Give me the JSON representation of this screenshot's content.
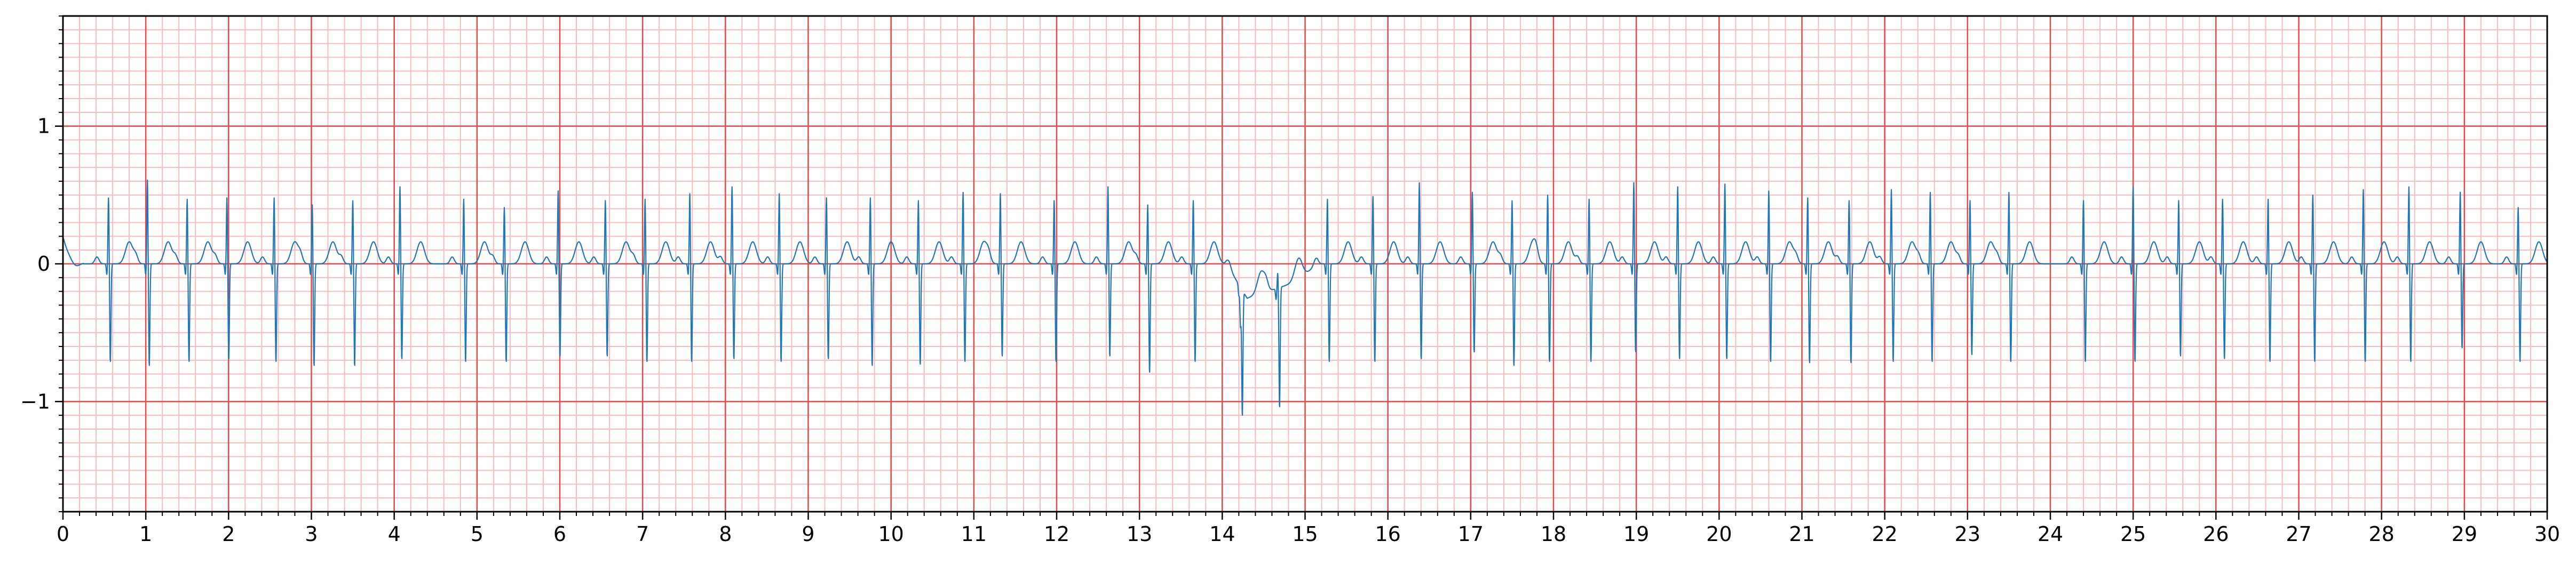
{
  "chart_data": {
    "type": "line",
    "title": "",
    "xlabel": "",
    "ylabel": "",
    "xlim": [
      0,
      30
    ],
    "ylim": [
      -1.8,
      1.8
    ],
    "x_ticks": [
      0,
      1,
      2,
      3,
      4,
      5,
      6,
      7,
      8,
      9,
      10,
      11,
      12,
      13,
      14,
      15,
      16,
      17,
      18,
      19,
      20,
      21,
      22,
      23,
      24,
      25,
      26,
      27,
      28,
      29,
      30
    ],
    "x_tick_labels": [
      "0",
      "1",
      "2",
      "3",
      "4",
      "5",
      "6",
      "7",
      "8",
      "9",
      "10",
      "11",
      "12",
      "13",
      "14",
      "15",
      "16",
      "17",
      "18",
      "19",
      "20",
      "21",
      "22",
      "23",
      "24",
      "25",
      "26",
      "27",
      "28",
      "29",
      "30"
    ],
    "y_ticks": [
      -1,
      0,
      1
    ],
    "y_tick_labels": [
      "−1",
      "0",
      "1"
    ],
    "x_minor_step": 0.2,
    "y_minor_step": 0.1,
    "grid": true,
    "grid_style": "ECG paper",
    "colors": {
      "major_grid": "#e8484a",
      "minor_grid": "#f9bcbd",
      "trace": "#1f77b4",
      "axes": "#000000"
    },
    "series": [
      {
        "name": "",
        "unit_x": "s",
        "beats": [
          [
            0.55,
            0.47,
            -0.72
          ],
          [
            1.02,
            0.6,
            -0.75
          ],
          [
            1.5,
            0.46,
            -0.72
          ],
          [
            1.98,
            0.47,
            -0.7
          ],
          [
            2.55,
            0.47,
            -0.72
          ],
          [
            3.01,
            0.42,
            -0.75
          ],
          [
            3.5,
            0.45,
            -0.75
          ],
          [
            4.07,
            0.55,
            -0.7
          ],
          [
            4.84,
            0.46,
            -0.72
          ],
          [
            5.33,
            0.4,
            -0.72
          ],
          [
            5.98,
            0.52,
            -0.68
          ],
          [
            6.55,
            0.45,
            -0.68
          ],
          [
            7.03,
            0.46,
            -0.72
          ],
          [
            7.57,
            0.5,
            -0.72
          ],
          [
            8.08,
            0.55,
            -0.7
          ],
          [
            8.65,
            0.5,
            -0.72
          ],
          [
            9.22,
            0.47,
            -0.7
          ],
          [
            9.75,
            0.47,
            -0.75
          ],
          [
            10.33,
            0.45,
            -0.74
          ],
          [
            10.87,
            0.51,
            -0.72
          ],
          [
            11.32,
            0.5,
            -0.68
          ],
          [
            11.97,
            0.45,
            -0.72
          ],
          [
            12.62,
            0.55,
            -0.68
          ],
          [
            13.1,
            0.42,
            -0.8
          ],
          [
            13.65,
            0.45,
            -0.72
          ],
          [
            14.22,
            -0.3,
            -0.92
          ],
          [
            14.67,
            0.1,
            -0.88
          ],
          [
            15.27,
            0.46,
            -0.72
          ],
          [
            15.82,
            0.48,
            -0.72
          ],
          [
            16.38,
            0.58,
            -0.7
          ],
          [
            17.02,
            0.51,
            -0.65
          ],
          [
            17.5,
            0.45,
            -0.75
          ],
          [
            17.93,
            0.49,
            -0.72
          ],
          [
            18.43,
            0.46,
            -0.72
          ],
          [
            18.97,
            0.58,
            -0.65
          ],
          [
            19.5,
            0.55,
            -0.7
          ],
          [
            20.07,
            0.57,
            -0.7
          ],
          [
            20.6,
            0.52,
            -0.72
          ],
          [
            21.07,
            0.47,
            -0.73
          ],
          [
            21.57,
            0.45,
            -0.73
          ],
          [
            22.08,
            0.53,
            -0.72
          ],
          [
            22.55,
            0.51,
            -0.72
          ],
          [
            23.03,
            0.45,
            -0.67
          ],
          [
            23.5,
            0.51,
            -0.72
          ],
          [
            24.4,
            0.45,
            -0.72
          ],
          [
            25.0,
            0.55,
            -0.72
          ],
          [
            25.55,
            0.45,
            -0.68
          ],
          [
            26.08,
            0.46,
            -0.7
          ],
          [
            26.63,
            0.46,
            -0.72
          ],
          [
            27.17,
            0.49,
            -0.72
          ],
          [
            27.78,
            0.53,
            -0.72
          ],
          [
            28.33,
            0.55,
            -0.72
          ],
          [
            28.95,
            0.51,
            -0.62
          ],
          [
            29.65,
            0.4,
            -0.72
          ]
        ]
      }
    ]
  }
}
